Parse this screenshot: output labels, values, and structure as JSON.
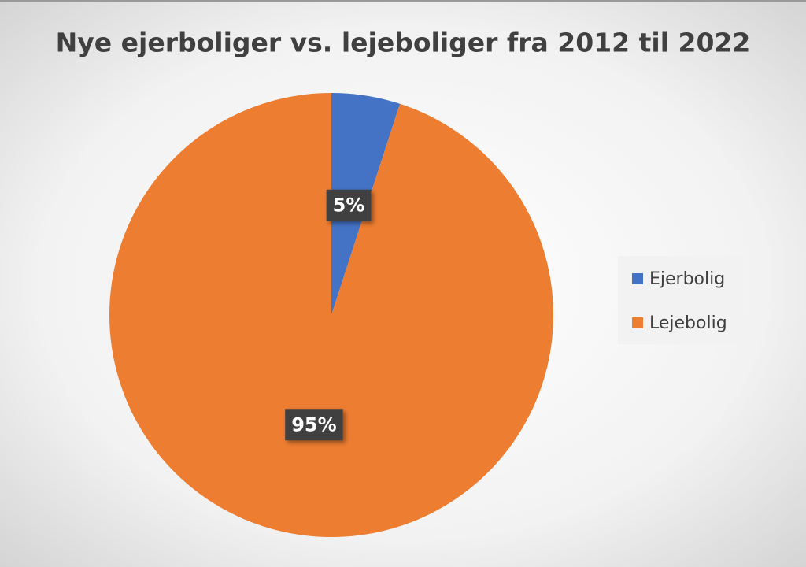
{
  "chart_data": {
    "type": "pie",
    "title": "Nye ejerboliger vs. lejeboliger fra 2012 til 2022",
    "categories": [
      "Ejerbolig",
      "Lejebolig"
    ],
    "values": [
      5,
      95
    ],
    "value_labels": [
      "5%",
      "95%"
    ],
    "colors": [
      "#4472c4",
      "#ed7d31"
    ],
    "legend": "right"
  }
}
